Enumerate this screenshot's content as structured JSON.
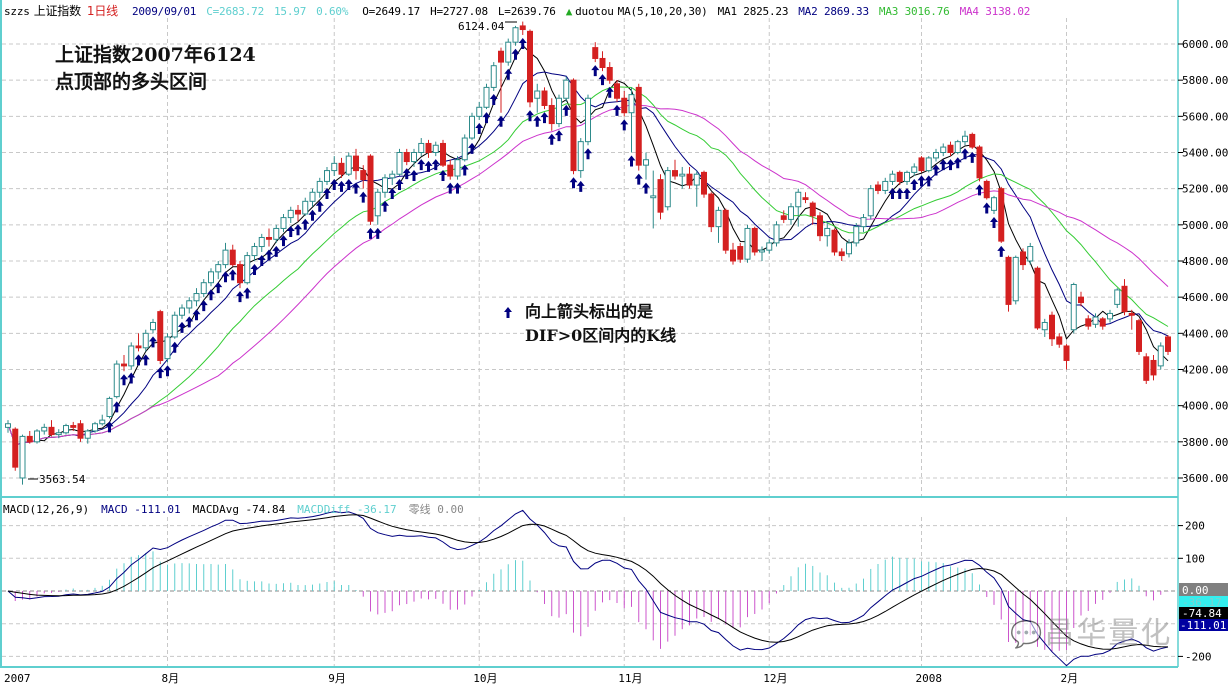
{
  "header": {
    "symbol": "szzs",
    "name": "上证指数",
    "period": "1日线",
    "date": "2009/09/01",
    "close": "C=2683.72",
    "change": "15.97",
    "change_pct": "0.60%",
    "open": "O=2649.17",
    "high": "H=2727.08",
    "low": "L=2639.76",
    "indicator_icon": "green-triangle-up",
    "indicator": "duotou",
    "ma_params": "MA(5,10,20,30)",
    "ma1": "MA1 2825.23",
    "ma2": "MA2 2869.33",
    "ma3": "MA3 3016.76",
    "ma4": "MA4 3138.02"
  },
  "annotations": {
    "title_line1": "上证指数2007年6124",
    "title_line2": "点顶部的多头区间",
    "arrow_note_line1": "向上箭头标出的是",
    "arrow_note_line2": "DIF>0区间内的K线",
    "peak_label": "6124.04",
    "trough_label": "3563.54"
  },
  "macd_header": {
    "params": "MACD(12,26,9)",
    "macd": "MACD -111.01",
    "avg": "MACDAvg -74.84",
    "diff": "MACDDiff -36.17",
    "zero": "零线 0.00"
  },
  "macd_axis_badges": {
    "zero": "0.00",
    "diff": "-36.17",
    "avg": "-74.84",
    "macd": "-111.01"
  },
  "watermark": "昌华量化",
  "colors": {
    "up": "#2e8b8b",
    "down": "#d42020",
    "ma1": "#000000",
    "ma2": "#000080",
    "ma3": "#33cc33",
    "ma4": "#cc33cc",
    "arrow": "#000080",
    "hist_pos": "#5fcfcf",
    "hist_neg": "#cc55cc",
    "frame": "#5fcfcf"
  },
  "chart_data": [
    {
      "type": "candlestick",
      "title": "",
      "ylim": [
        3520,
        6140
      ],
      "y_ticks": [
        "6000.00",
        "5800.00",
        "5600.00",
        "5400.00",
        "5200.00",
        "5000.00",
        "4800.00",
        "4600.00",
        "4400.00",
        "4200.00",
        "4000.00",
        "3800.00",
        "3600.00"
      ],
      "x_tick_labels": [
        {
          "label": "2007",
          "index": 0
        },
        {
          "label": "8月",
          "index": 22
        },
        {
          "label": "9月",
          "index": 45
        },
        {
          "label": "10月",
          "index": 65
        },
        {
          "label": "11月",
          "index": 85
        },
        {
          "label": "12月",
          "index": 105
        },
        {
          "label": "2008",
          "index": 126
        },
        {
          "label": "2月",
          "index": 146
        }
      ],
      "grid": true,
      "moving_averages": [
        5,
        10,
        20,
        30
      ],
      "ohlc": [
        [
          3880,
          3920,
          3850,
          3900
        ],
        [
          3870,
          3880,
          3640,
          3660
        ],
        [
          3600,
          3840,
          3563.54,
          3830
        ],
        [
          3830,
          3860,
          3790,
          3800
        ],
        [
          3800,
          3870,
          3790,
          3860
        ],
        [
          3860,
          3900,
          3840,
          3880
        ],
        [
          3880,
          3920,
          3830,
          3840
        ],
        [
          3840,
          3870,
          3820,
          3850
        ],
        [
          3850,
          3900,
          3840,
          3890
        ],
        [
          3890,
          3910,
          3860,
          3880
        ],
        [
          3900,
          3920,
          3800,
          3820
        ],
        [
          3820,
          3870,
          3790,
          3860
        ],
        [
          3860,
          3910,
          3850,
          3900
        ],
        [
          3900,
          3950,
          3890,
          3920
        ],
        [
          3940,
          4050,
          3930,
          4040
        ],
        [
          4050,
          4250,
          4040,
          4230
        ],
        [
          4230,
          4280,
          4190,
          4220
        ],
        [
          4220,
          4350,
          4200,
          4330
        ],
        [
          4330,
          4400,
          4300,
          4320
        ],
        [
          4320,
          4420,
          4300,
          4400
        ],
        [
          4420,
          4480,
          4400,
          4460
        ],
        [
          4520,
          4530,
          4230,
          4250
        ],
        [
          4260,
          4400,
          4240,
          4380
        ],
        [
          4380,
          4520,
          4370,
          4500
        ],
        [
          4500,
          4560,
          4480,
          4540
        ],
        [
          4540,
          4600,
          4510,
          4580
        ],
        [
          4580,
          4650,
          4550,
          4620
        ],
        [
          4620,
          4700,
          4600,
          4680
        ],
        [
          4680,
          4760,
          4660,
          4740
        ],
        [
          4740,
          4800,
          4700,
          4780
        ],
        [
          4780,
          4900,
          4760,
          4860
        ],
        [
          4860,
          4890,
          4770,
          4780
        ],
        [
          4780,
          4800,
          4650,
          4680
        ],
        [
          4680,
          4850,
          4670,
          4830
        ],
        [
          4830,
          4900,
          4800,
          4880
        ],
        [
          4880,
          4950,
          4850,
          4930
        ],
        [
          4930,
          4980,
          4880,
          4920
        ],
        [
          4920,
          5000,
          4900,
          4980
        ],
        [
          4980,
          5060,
          4960,
          5040
        ],
        [
          5040,
          5100,
          5010,
          5080
        ],
        [
          5080,
          5110,
          5020,
          5060
        ],
        [
          5060,
          5150,
          5050,
          5130
        ],
        [
          5130,
          5200,
          5100,
          5180
        ],
        [
          5180,
          5260,
          5150,
          5240
        ],
        [
          5240,
          5320,
          5220,
          5300
        ],
        [
          5300,
          5380,
          5270,
          5340
        ],
        [
          5340,
          5370,
          5260,
          5280
        ],
        [
          5280,
          5400,
          5270,
          5380
        ],
        [
          5380,
          5420,
          5250,
          5300
        ],
        [
          5300,
          5330,
          5200,
          5250
        ],
        [
          5380,
          5390,
          5000,
          5020
        ],
        [
          5050,
          5200,
          5000,
          5180
        ],
        [
          5180,
          5280,
          5150,
          5260
        ],
        [
          5260,
          5300,
          5220,
          5280
        ],
        [
          5280,
          5420,
          5270,
          5400
        ],
        [
          5400,
          5420,
          5330,
          5350
        ],
        [
          5350,
          5420,
          5320,
          5400
        ],
        [
          5400,
          5480,
          5380,
          5450
        ],
        [
          5450,
          5470,
          5370,
          5400
        ],
        [
          5400,
          5460,
          5380,
          5440
        ],
        [
          5450,
          5470,
          5320,
          5330
        ],
        [
          5330,
          5360,
          5250,
          5270
        ],
        [
          5270,
          5380,
          5250,
          5360
        ],
        [
          5360,
          5500,
          5350,
          5480
        ],
        [
          5480,
          5620,
          5470,
          5600
        ],
        [
          5600,
          5680,
          5580,
          5650
        ],
        [
          5650,
          5780,
          5640,
          5760
        ],
        [
          5760,
          5900,
          5740,
          5880
        ],
        [
          5960,
          5980,
          5620,
          5900
        ],
        [
          5900,
          6030,
          5880,
          6010
        ],
        [
          6010,
          6100,
          5990,
          6090
        ],
        [
          6100,
          6124.04,
          6050,
          6080
        ],
        [
          6070,
          6080,
          5650,
          5680
        ],
        [
          5700,
          5780,
          5620,
          5740
        ],
        [
          5740,
          5760,
          5640,
          5660
        ],
        [
          5660,
          5700,
          5520,
          5560
        ],
        [
          5560,
          5720,
          5540,
          5700
        ],
        [
          5700,
          5820,
          5680,
          5800
        ],
        [
          5800,
          5810,
          5280,
          5300
        ],
        [
          5300,
          5480,
          5260,
          5460
        ],
        [
          5460,
          5720,
          5440,
          5700
        ],
        [
          5980,
          6010,
          5900,
          5920
        ],
        [
          5920,
          5960,
          5850,
          5870
        ],
        [
          5870,
          5900,
          5780,
          5800
        ],
        [
          5780,
          5800,
          5680,
          5700
        ],
        [
          5700,
          5740,
          5600,
          5620
        ],
        [
          5620,
          5760,
          5400,
          5720
        ],
        [
          5760,
          5780,
          5300,
          5330
        ],
        [
          5330,
          5400,
          5250,
          5360
        ],
        [
          5150,
          5300,
          4980,
          5160
        ],
        [
          5250,
          5280,
          5030,
          5070
        ],
        [
          5100,
          5320,
          5080,
          5300
        ],
        [
          5300,
          5360,
          5250,
          5270
        ],
        [
          5270,
          5320,
          5200,
          5280
        ],
        [
          5280,
          5320,
          5200,
          5220
        ],
        [
          5220,
          5300,
          5100,
          5280
        ],
        [
          5290,
          5300,
          5150,
          5170
        ],
        [
          5170,
          5180,
          4960,
          4990
        ],
        [
          4990,
          5100,
          4900,
          5080
        ],
        [
          5080,
          5090,
          4840,
          4860
        ],
        [
          4860,
          4900,
          4780,
          4800
        ],
        [
          4880,
          4900,
          4790,
          4810
        ],
        [
          4810,
          5000,
          4790,
          4980
        ],
        [
          4980,
          4990,
          4830,
          4850
        ],
        [
          4850,
          4880,
          4800,
          4860
        ],
        [
          4860,
          4920,
          4840,
          4900
        ],
        [
          4900,
          5020,
          4880,
          5000
        ],
        [
          5050,
          5080,
          5010,
          5030
        ],
        [
          5030,
          5120,
          5000,
          5100
        ],
        [
          5100,
          5200,
          4990,
          5180
        ],
        [
          5150,
          5180,
          5120,
          5140
        ],
        [
          5120,
          5130,
          5000,
          5050
        ],
        [
          5050,
          5070,
          4910,
          4940
        ],
        [
          4940,
          5010,
          4880,
          4980
        ],
        [
          4970,
          4980,
          4830,
          4850
        ],
        [
          4850,
          4870,
          4800,
          4830
        ],
        [
          4840,
          4920,
          4820,
          4900
        ],
        [
          4900,
          5010,
          4880,
          4990
        ],
        [
          4990,
          5060,
          4960,
          5040
        ],
        [
          5050,
          5220,
          5030,
          5200
        ],
        [
          5220,
          5240,
          5170,
          5190
        ],
        [
          5190,
          5260,
          5170,
          5240
        ],
        [
          5240,
          5300,
          5220,
          5280
        ],
        [
          5290,
          5300,
          5220,
          5240
        ],
        [
          5240,
          5300,
          5220,
          5290
        ],
        [
          5290,
          5340,
          5270,
          5320
        ],
        [
          5370,
          5380,
          5290,
          5300
        ],
        [
          5300,
          5380,
          5290,
          5370
        ],
        [
          5370,
          5420,
          5350,
          5400
        ],
        [
          5400,
          5450,
          5380,
          5430
        ],
        [
          5440,
          5460,
          5380,
          5400
        ],
        [
          5400,
          5470,
          5390,
          5460
        ],
        [
          5460,
          5520,
          5440,
          5490
        ],
        [
          5500,
          5510,
          5420,
          5430
        ],
        [
          5430,
          5440,
          5240,
          5260
        ],
        [
          5240,
          5250,
          5140,
          5150
        ],
        [
          5080,
          5160,
          5060,
          5150
        ],
        [
          5200,
          5210,
          4900,
          4910
        ],
        [
          4820,
          4830,
          4520,
          4560
        ],
        [
          4580,
          4830,
          4560,
          4820
        ],
        [
          4850,
          4870,
          4750,
          4780
        ],
        [
          4800,
          4900,
          4780,
          4880
        ],
        [
          4760,
          4770,
          4420,
          4430
        ],
        [
          4420,
          4480,
          4380,
          4460
        ],
        [
          4500,
          4520,
          4330,
          4370
        ],
        [
          4380,
          4400,
          4320,
          4340
        ],
        [
          4330,
          4340,
          4200,
          4250
        ],
        [
          4420,
          4680,
          4400,
          4670
        ],
        [
          4600,
          4630,
          4550,
          4570
        ],
        [
          4480,
          4500,
          4420,
          4440
        ],
        [
          4450,
          4510,
          4430,
          4490
        ],
        [
          4480,
          4490,
          4420,
          4440
        ],
        [
          4480,
          4530,
          4460,
          4510
        ],
        [
          4560,
          4650,
          4540,
          4640
        ],
        [
          4660,
          4700,
          4500,
          4520
        ],
        [
          4510,
          4530,
          4420,
          4500
        ],
        [
          4470,
          4480,
          4280,
          4300
        ],
        [
          4270,
          4290,
          4120,
          4140
        ],
        [
          4250,
          4280,
          4140,
          4170
        ],
        [
          4220,
          4350,
          4200,
          4330
        ],
        [
          4380,
          4390,
          4280,
          4300
        ]
      ]
    },
    {
      "type": "line",
      "title": "MACD(12,26,9)",
      "ylim": [
        -230,
        240
      ],
      "y_ticks": [
        "200",
        "100",
        "-200"
      ],
      "params": [
        12,
        26,
        9
      ],
      "series": [
        {
          "name": "MACD"
        },
        {
          "name": "MACDAvg"
        },
        {
          "name": "MACDDiff"
        }
      ]
    }
  ]
}
